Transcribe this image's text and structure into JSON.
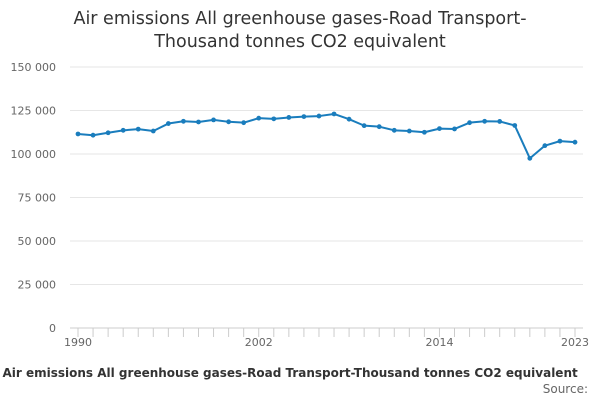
{
  "chart_data": {
    "type": "line",
    "title": "Air emissions All greenhouse gases-Road Transport-Thousand tonnes CO2 equivalent",
    "title_lines": [
      "Air emissions All greenhouse gases-Road Transport-",
      "Thousand tonnes CO2 equivalent"
    ],
    "xlabel": "",
    "ylabel": "",
    "x": [
      1990,
      1991,
      1992,
      1993,
      1994,
      1995,
      1996,
      1997,
      1998,
      1999,
      2000,
      2001,
      2002,
      2003,
      2004,
      2005,
      2006,
      2007,
      2008,
      2009,
      2010,
      2011,
      2012,
      2013,
      2014,
      2015,
      2016,
      2017,
      2018,
      2019,
      2020,
      2021,
      2022,
      2023
    ],
    "series": [
      {
        "name": "Air emissions All greenhouse gases-Road Transport-Thousand tonnes CO2 equivalent",
        "color": "#1a7dbd",
        "values": [
          111500,
          110800,
          112200,
          113600,
          114300,
          113200,
          117500,
          118800,
          118400,
          119600,
          118500,
          118000,
          120600,
          120200,
          121000,
          121500,
          121800,
          123000,
          120000,
          116300,
          115700,
          113600,
          113200,
          112500,
          114600,
          114400,
          118000,
          118800,
          118700,
          116400,
          97500,
          104800,
          107400,
          106800
        ]
      }
    ],
    "ylim": [
      0,
      150000
    ],
    "yticks": [
      0,
      25000,
      50000,
      75000,
      100000,
      125000,
      150000
    ],
    "ytick_labels": [
      "0",
      "25 000",
      "50 000",
      "75 000",
      "100 000",
      "125 000",
      "150 000"
    ],
    "xlim": [
      1990,
      2023
    ],
    "xticks": [
      1990,
      2002,
      2014,
      2023
    ],
    "xtick_labels": [
      "1990",
      "2002",
      "2014",
      "2023"
    ],
    "grid": true,
    "legend": "bottom-center"
  },
  "legend_label": "Air emissions All greenhouse gases-Road Transport-Thousand tonnes CO2 equivalent",
  "source_label": "Source:"
}
